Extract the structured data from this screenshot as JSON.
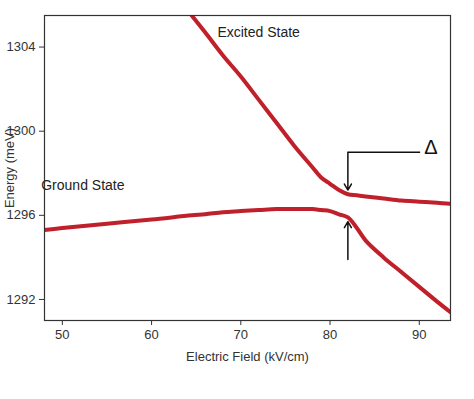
{
  "chart_data": {
    "type": "line",
    "x_label": "Electric Field (kV/cm)",
    "y_label": "Energy (meV)",
    "x": [
      48,
      50,
      55,
      60,
      64.5,
      66,
      68,
      70,
      72,
      74,
      76,
      78,
      79,
      80,
      81,
      82,
      83,
      84,
      86,
      88,
      90,
      92,
      93.5
    ],
    "series": [
      {
        "name": "Ground State",
        "color": "#c0202a",
        "line_style": "solid",
        "name_position": [
          52.3,
          1297.4
        ],
        "values": [
          1295.3,
          1295.4,
          1295.6,
          1295.8,
          1296.0,
          1296.05,
          1296.15,
          1296.2,
          1296.25,
          1296.3,
          1296.3,
          1296.3,
          1296.25,
          1296.2,
          1296.05,
          1295.9,
          1295.4,
          1294.8,
          1294.0,
          1293.3,
          1292.6,
          1291.9,
          1291.4
        ]
      },
      {
        "name": "Excited State",
        "color": "#c0202a",
        "line_style": "solid",
        "name_position": [
          72,
          1304.7
        ],
        "values": [
          null,
          null,
          null,
          null,
          1305.5,
          1304.7,
          1303.6,
          1302.6,
          1301.5,
          1300.4,
          1299.3,
          1298.3,
          1297.8,
          1297.5,
          1297.2,
          1297.0,
          1296.95,
          1296.9,
          1296.8,
          1296.7,
          1296.65,
          1296.6,
          1296.55
        ]
      }
    ],
    "annotations": [
      {
        "text": "Δ",
        "x": 91.3,
        "y": 1299.2
      }
    ],
    "xlim": [
      48,
      93.5
    ],
    "ylim": [
      1291,
      1305.5
    ],
    "xticks": [
      50,
      60,
      70,
      80,
      90
    ],
    "yticks": [
      1292,
      1296,
      1300,
      1304
    ],
    "grid": false
  }
}
